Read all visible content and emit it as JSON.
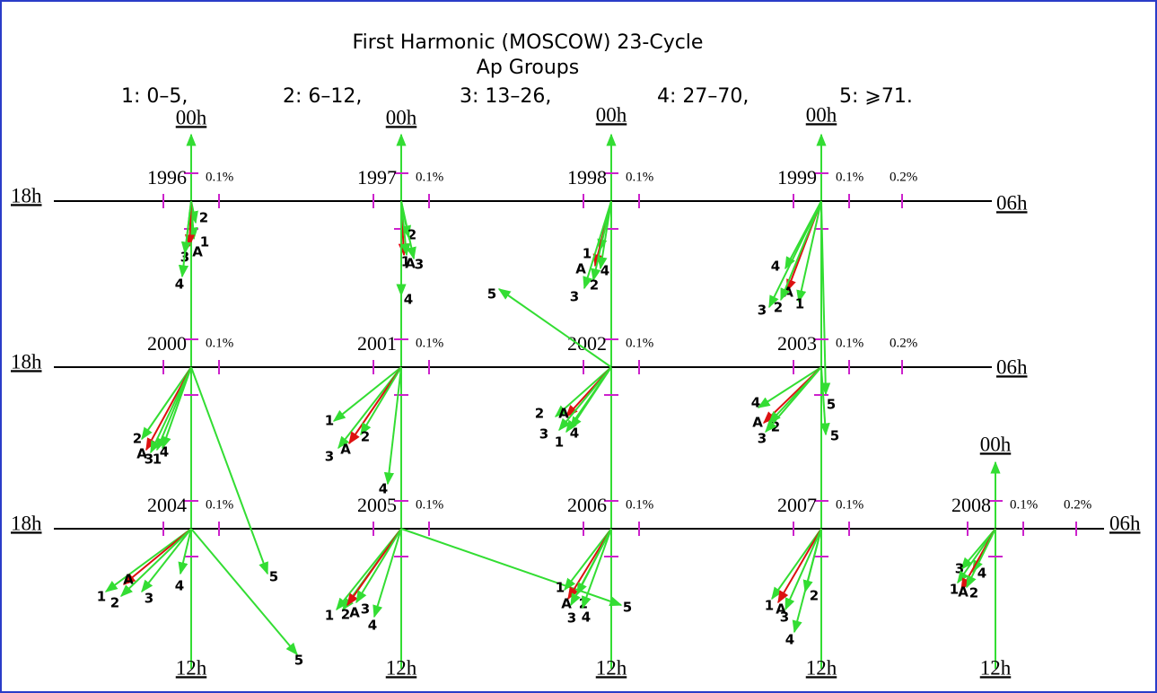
{
  "title": "First Harmonic (MOSCOW) 23-Cycle",
  "subtitle": "Ap Groups",
  "groups": [
    "1: 0–5,",
    "2: 6–12,",
    "3: 13–26,",
    "4: 27–70,",
    "5: ⩾71."
  ],
  "clock": {
    "top": "00h",
    "bottom": "12h",
    "left": "18h",
    "right": "06h"
  },
  "dials": [
    {
      "year": "1996",
      "scales": [
        "0.1%"
      ],
      "vectors": [
        "2",
        "1",
        "A",
        "3",
        "4"
      ]
    },
    {
      "year": "1997",
      "scales": [
        "0.1%"
      ],
      "vectors": [
        "2",
        "1",
        "A",
        "3",
        "4"
      ]
    },
    {
      "year": "1998",
      "scales": [
        "0.1%"
      ],
      "vectors": [
        "1",
        "A",
        "4",
        "2",
        "3"
      ]
    },
    {
      "year": "1999",
      "scales": [
        "0.1%",
        "0.2%"
      ],
      "vectors": [
        "4",
        "A",
        "1",
        "2",
        "3",
        "5"
      ]
    },
    {
      "year": "2000",
      "scales": [
        "0.1%"
      ],
      "vectors": [
        "2",
        "A",
        "3",
        "1",
        "4",
        "5"
      ]
    },
    {
      "year": "2001",
      "scales": [
        "0.1%"
      ],
      "vectors": [
        "1",
        "3",
        "A",
        "2",
        "4"
      ]
    },
    {
      "year": "2002",
      "scales": [
        "0.1%"
      ],
      "vectors": [
        "2",
        "A",
        "3",
        "1",
        "4",
        "5"
      ]
    },
    {
      "year": "2003",
      "scales": [
        "0.1%",
        "0.2%"
      ],
      "vectors": [
        "4",
        "A",
        "2",
        "3",
        "5"
      ]
    },
    {
      "year": "2004",
      "scales": [
        "0.1%"
      ],
      "vectors": [
        "1",
        "A",
        "2",
        "3",
        "4",
        "5"
      ]
    },
    {
      "year": "2005",
      "scales": [
        "0.1%"
      ],
      "vectors": [
        "1",
        "2",
        "A",
        "3",
        "4",
        "5"
      ]
    },
    {
      "year": "2006",
      "scales": [
        "0.1%"
      ],
      "vectors": [
        "1",
        "A",
        "2",
        "3",
        "4"
      ]
    },
    {
      "year": "2007",
      "scales": [
        "0.1%"
      ],
      "vectors": [
        "1",
        "A",
        "3",
        "2",
        "4"
      ]
    },
    {
      "year": "2008",
      "scales": [
        "0.1%",
        "0.2%"
      ],
      "vectors": [
        "3",
        "4",
        "1",
        "A",
        "2"
      ]
    }
  ]
}
